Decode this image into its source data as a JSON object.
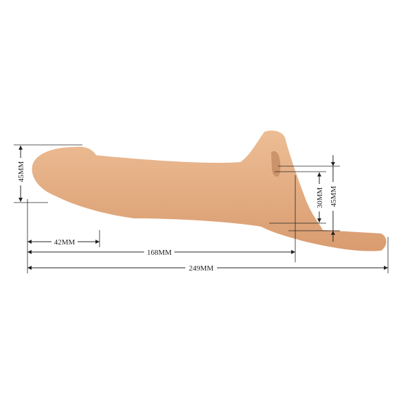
{
  "colors": {
    "product": "#e8b48a",
    "product_shade": "#d99c70",
    "dimension_line": "#222222",
    "background": "#ffffff"
  },
  "dimensions": {
    "left_height": "45MM",
    "tip_length": "42MM",
    "insertable_length": "168MM",
    "total_length": "249MM",
    "opening_inner": "30MM",
    "opening_outer": "45MM"
  }
}
